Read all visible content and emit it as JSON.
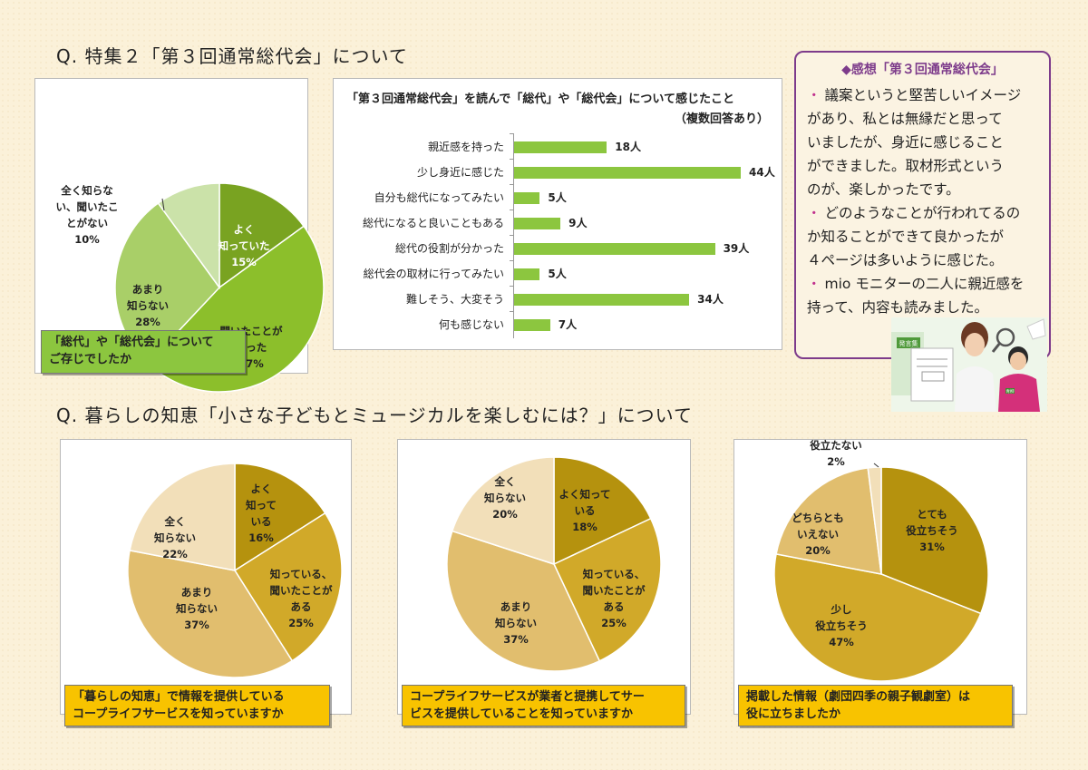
{
  "headings": {
    "q1": "Q.  特集２「第３回通常総代会」について",
    "q2": "Q.  暮らしの知恵「小さな子どもとミュージカルを楽しむには？」について"
  },
  "impression": {
    "title": "◆感想「第３回通常総代会」",
    "bullet": "・",
    "items": [
      {
        "lines": [
          "議案というと堅苦しいイメージ",
          "があり、私とは無縁だと思って",
          "いましたが、身近に感じること",
          "ができました。取材形式という",
          "のが、楽しかったです。"
        ]
      },
      {
        "lines": [
          "どのようなことが行われてるの",
          "か知ることができて良かったが",
          "４ページは多いように感じた。"
        ]
      },
      {
        "lines": [
          "mio モニターの二人に親近感を",
          "持って、内容も読みました。"
        ]
      }
    ]
  },
  "photo": {
    "sign": "発言集",
    "badge": "青柳"
  },
  "colors": {
    "green_dark": "#79a321",
    "green_mid": "#8cbf2b",
    "green_light": "#a9cf68",
    "green_pale": "#cbe2a9",
    "gold_dark": "#b5920e",
    "gold_mid": "#d1a929",
    "gold_light": "#e1be6e",
    "gold_pale": "#f2dfb9",
    "bar": "#8cc63f",
    "caption_green": "#8cc63f",
    "caption_yellow": "#f8c300",
    "purple": "#7d3b8b"
  },
  "chart_data": [
    {
      "type": "pie",
      "title": "「総代」や「総代会」について ご存じでしたか",
      "caption_lines": [
        "「総代」や「総代会」について",
        "ご存じでしたか"
      ],
      "slices": [
        {
          "lines": [
            "よく",
            "知っていた",
            "15%"
          ],
          "value": 15,
          "color": "green_dark"
        },
        {
          "lines": [
            "聞いたことが",
            "あった",
            "47%"
          ],
          "value": 47,
          "color": "green_mid"
        },
        {
          "lines": [
            "あまり",
            "知らない",
            "28%"
          ],
          "value": 28,
          "color": "green_light"
        },
        {
          "lines": [
            "全く知らな",
            "い、聞いたこ",
            "とがない",
            "10%"
          ],
          "value": 10,
          "color": "green_pale"
        }
      ]
    },
    {
      "type": "bar",
      "title": "「第３回通常総代会」を読んで「総代」や「総代会」について感じたこと",
      "subtitle": "（複数回答あり）",
      "categories": [
        "親近感を持った",
        "少し身近に感じた",
        "自分も総代になってみたい",
        "総代になると良いこともある",
        "総代の役割が分かった",
        "総代会の取材に行ってみたい",
        "難しそう、大変そう",
        "何も感じない"
      ],
      "values": [
        18,
        44,
        5,
        9,
        39,
        5,
        34,
        7
      ],
      "value_labels": [
        "18人",
        "44人",
        "5人",
        "9人",
        "39人",
        "5人",
        "34人",
        "7人"
      ],
      "unit": "人"
    },
    {
      "type": "pie",
      "title": "「暮らしの知恵」で情報を提供している コープライフサービスを知っていますか",
      "caption_lines": [
        "「暮らしの知恵」で情報を提供している",
        "コープライフサービスを知っていますか"
      ],
      "slices": [
        {
          "lines": [
            "よく",
            "知って",
            "いる",
            "16%"
          ],
          "value": 16,
          "color": "gold_dark"
        },
        {
          "lines": [
            "知っている、",
            "聞いたことが",
            "ある",
            "25%"
          ],
          "value": 25,
          "color": "gold_mid"
        },
        {
          "lines": [
            "あまり",
            "知らない",
            "37%"
          ],
          "value": 37,
          "color": "gold_light"
        },
        {
          "lines": [
            "全く",
            "知らない",
            "22%"
          ],
          "value": 22,
          "color": "gold_pale"
        }
      ]
    },
    {
      "type": "pie",
      "title": "コープライフサービスが業者と提携してサービスを提供していることを知っていますか",
      "caption_lines": [
        "コープライフサービスが業者と提携してサー",
        "ビスを提供していることを知っていますか"
      ],
      "slices": [
        {
          "lines": [
            "よく知って",
            "いる",
            "18%"
          ],
          "value": 18,
          "color": "gold_dark"
        },
        {
          "lines": [
            "知っている、",
            "聞いたことが",
            "ある",
            "25%"
          ],
          "value": 25,
          "color": "gold_mid"
        },
        {
          "lines": [
            "あまり",
            "知らない",
            "37%"
          ],
          "value": 37,
          "color": "gold_light"
        },
        {
          "lines": [
            "全く",
            "知らない",
            "20%"
          ],
          "value": 20,
          "color": "gold_pale"
        }
      ]
    },
    {
      "type": "pie",
      "title": "掲載した情報（劇団四季の親子観劇室）は 役に立ちましたか",
      "caption_lines": [
        "掲載した情報（劇団四季の親子観劇室）は",
        "役に立ちましたか"
      ],
      "slices": [
        {
          "lines": [
            "とても",
            "役立ちそう",
            "31%"
          ],
          "value": 31,
          "color": "gold_dark"
        },
        {
          "lines": [
            "少し",
            "役立ちそう",
            "47%"
          ],
          "value": 47,
          "color": "gold_mid"
        },
        {
          "lines": [
            "どちらとも",
            "いえない",
            "20%"
          ],
          "value": 20,
          "color": "gold_light"
        },
        {
          "lines": [
            "役立たない",
            "2%"
          ],
          "value": 2,
          "color": "gold_pale"
        }
      ]
    }
  ]
}
